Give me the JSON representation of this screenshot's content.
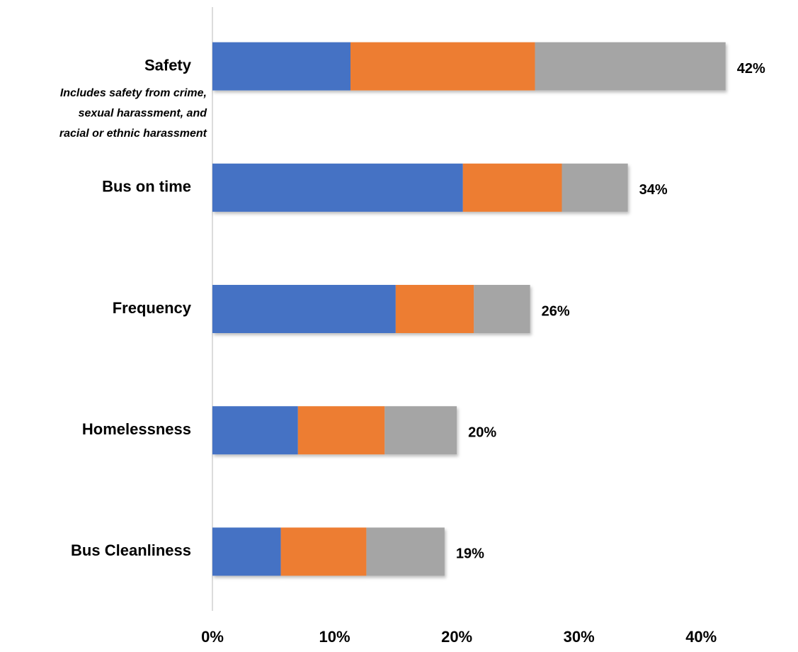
{
  "chart_data": {
    "type": "stacked-bar-horizontal",
    "categories": [
      "Safety",
      "Bus on time",
      "Frequency",
      "Homelessness",
      "Bus Cleanliness"
    ],
    "annotation": [
      "Includes safety from crime,",
      "sexual harassment, and",
      "racial or ethnic harassment"
    ],
    "series": [
      {
        "color": "#4472c4",
        "values": [
          11.3,
          20.5,
          15.0,
          7.0,
          5.6
        ]
      },
      {
        "color": "#ed7d31",
        "values": [
          15.1,
          8.1,
          6.4,
          7.1,
          7.0
        ]
      },
      {
        "color": "#a5a5a5",
        "values": [
          15.6,
          5.4,
          4.6,
          5.9,
          6.4
        ]
      }
    ],
    "totals": [
      42,
      34,
      26,
      20,
      19
    ],
    "total_labels": [
      "42%",
      "34%",
      "26%",
      "20%",
      "19%"
    ],
    "xlim": [
      0,
      47
    ],
    "xticks": [
      {
        "value": 0,
        "label": "0%"
      },
      {
        "value": 10,
        "label": "10%"
      },
      {
        "value": 20,
        "label": "20%"
      },
      {
        "value": 30,
        "label": "30%"
      },
      {
        "value": 40,
        "label": "40%"
      }
    ]
  }
}
